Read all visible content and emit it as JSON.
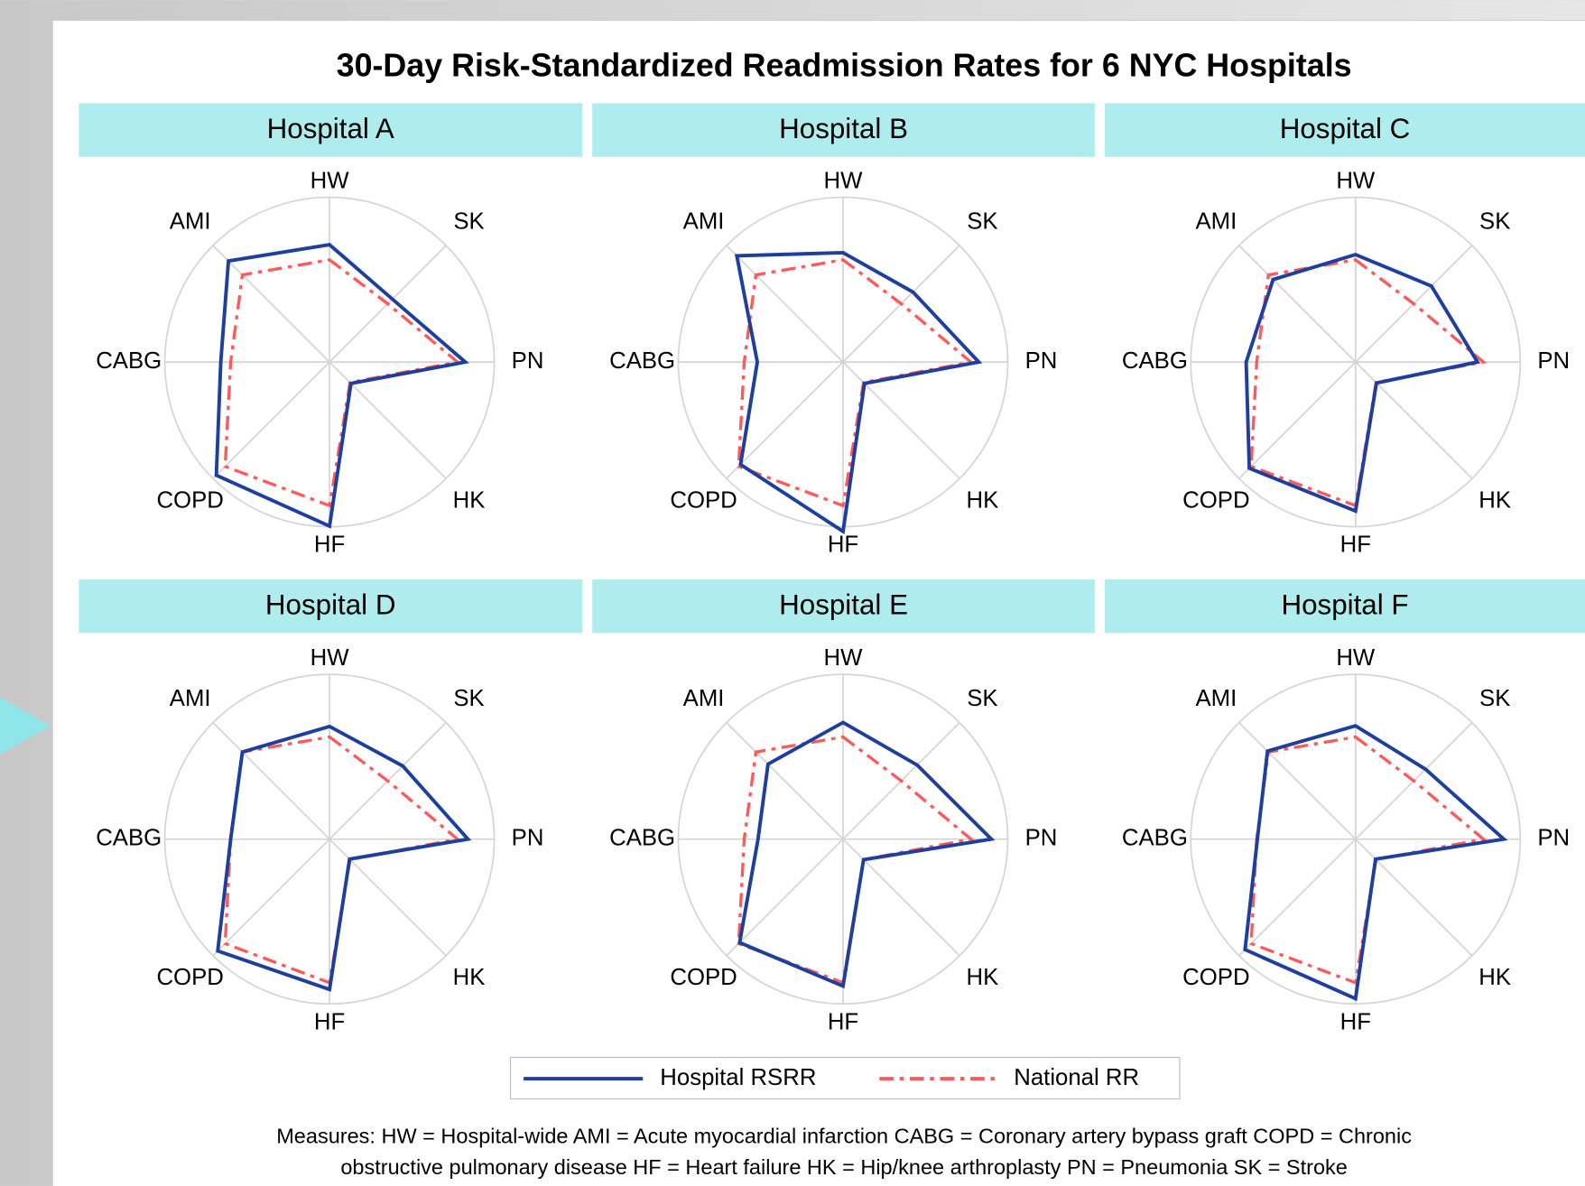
{
  "title": "30-Day Risk-Standardized Readmission Rates for 6 NYC Hospitals",
  "footnote": [
    "Measures: HW = Hospital-wide AMI = Acute myocardial infarction  CABG = Coronary artery bypass graft COPD = Chronic",
    "obstructive pulmonary disease HF = Heart failure  HK = Hip/knee arthroplasty  PN = Pneumonia  SK = Stroke"
  ],
  "chart_data": [
    {
      "type": "radar",
      "title": "Hospital A",
      "categories": [
        "HW",
        "SK",
        "PN",
        "HK",
        "HF",
        "COPD",
        "CABG",
        "AMI"
      ],
      "rlim": [
        0,
        25
      ],
      "series": [
        {
          "name": "Hospital RSRR",
          "color": "#1f3f9f",
          "line_style": "solid",
          "values": [
            17.8,
            13.5,
            20.6,
            4.6,
            24.9,
            24.3,
            16.5,
            21.7
          ]
        },
        {
          "name": "National RR",
          "color": "#ff5a5a",
          "line_style": "dashdot",
          "values": [
            15.5,
            12.5,
            19.4,
            4.4,
            21.8,
            22.4,
            15.0,
            18.7
          ]
        }
      ]
    },
    {
      "type": "radar",
      "title": "Hospital B",
      "categories": [
        "HW",
        "SK",
        "PN",
        "HK",
        "HF",
        "COPD",
        "CABG",
        "AMI"
      ],
      "rlim": [
        0,
        25
      ],
      "series": [
        {
          "name": "Hospital RSRR",
          "color": "#1f3f9f",
          "line_style": "solid",
          "values": [
            16.6,
            15.0,
            20.6,
            4.6,
            25.7,
            22.0,
            13.0,
            22.8
          ]
        },
        {
          "name": "National RR",
          "color": "#ff5a5a",
          "line_style": "dashdot",
          "values": [
            15.5,
            12.5,
            19.4,
            4.4,
            21.8,
            22.4,
            15.0,
            18.7
          ]
        }
      ]
    },
    {
      "type": "radar",
      "title": "Hospital C",
      "categories": [
        "HW",
        "SK",
        "PN",
        "HK",
        "HF",
        "COPD",
        "CABG",
        "AMI"
      ],
      "rlim": [
        0,
        25
      ],
      "series": [
        {
          "name": "Hospital RSRR",
          "color": "#1f3f9f",
          "line_style": "solid",
          "values": [
            16.3,
            16.3,
            18.5,
            4.5,
            22.6,
            22.8,
            16.6,
            17.7
          ]
        },
        {
          "name": "National RR",
          "color": "#ff5a5a",
          "line_style": "dashdot",
          "values": [
            15.5,
            12.5,
            19.4,
            4.4,
            21.8,
            22.4,
            15.0,
            18.7
          ]
        }
      ]
    },
    {
      "type": "radar",
      "title": "Hospital D",
      "categories": [
        "HW",
        "SK",
        "PN",
        "HK",
        "HF",
        "COPD",
        "CABG",
        "AMI"
      ],
      "rlim": [
        0,
        25
      ],
      "series": [
        {
          "name": "Hospital RSRR",
          "color": "#1f3f9f",
          "line_style": "solid",
          "values": [
            17.1,
            15.7,
            21.0,
            4.3,
            22.8,
            24.0,
            15.0,
            18.7
          ]
        },
        {
          "name": "National RR",
          "color": "#ff5a5a",
          "line_style": "dashdot",
          "values": [
            15.5,
            12.5,
            19.4,
            4.4,
            21.8,
            22.4,
            15.0,
            18.7
          ]
        }
      ]
    },
    {
      "type": "radar",
      "title": "Hospital E",
      "categories": [
        "HW",
        "SK",
        "PN",
        "HK",
        "HF",
        "COPD",
        "CABG",
        "AMI"
      ],
      "rlim": [
        0,
        25
      ],
      "series": [
        {
          "name": "Hospital RSRR",
          "color": "#1f3f9f",
          "line_style": "solid",
          "values": [
            17.7,
            15.9,
            22.5,
            4.4,
            22.3,
            22.2,
            12.9,
            16.1
          ]
        },
        {
          "name": "National RR",
          "color": "#ff5a5a",
          "line_style": "dashdot",
          "values": [
            15.5,
            12.5,
            19.4,
            4.4,
            21.8,
            22.4,
            15.0,
            18.7
          ]
        }
      ]
    },
    {
      "type": "radar",
      "title": "Hospital F",
      "categories": [
        "HW",
        "SK",
        "PN",
        "HK",
        "HF",
        "COPD",
        "CABG",
        "AMI"
      ],
      "rlim": [
        0,
        25
      ],
      "series": [
        {
          "name": "Hospital RSRR",
          "color": "#1f3f9f",
          "line_style": "solid",
          "values": [
            17.2,
            15.0,
            22.5,
            4.3,
            24.2,
            23.7,
            14.9,
            18.9
          ]
        },
        {
          "name": "National RR",
          "color": "#ff5a5a",
          "line_style": "dashdot",
          "values": [
            15.5,
            12.5,
            19.4,
            4.4,
            21.8,
            22.4,
            15.0,
            18.7
          ]
        }
      ]
    }
  ]
}
